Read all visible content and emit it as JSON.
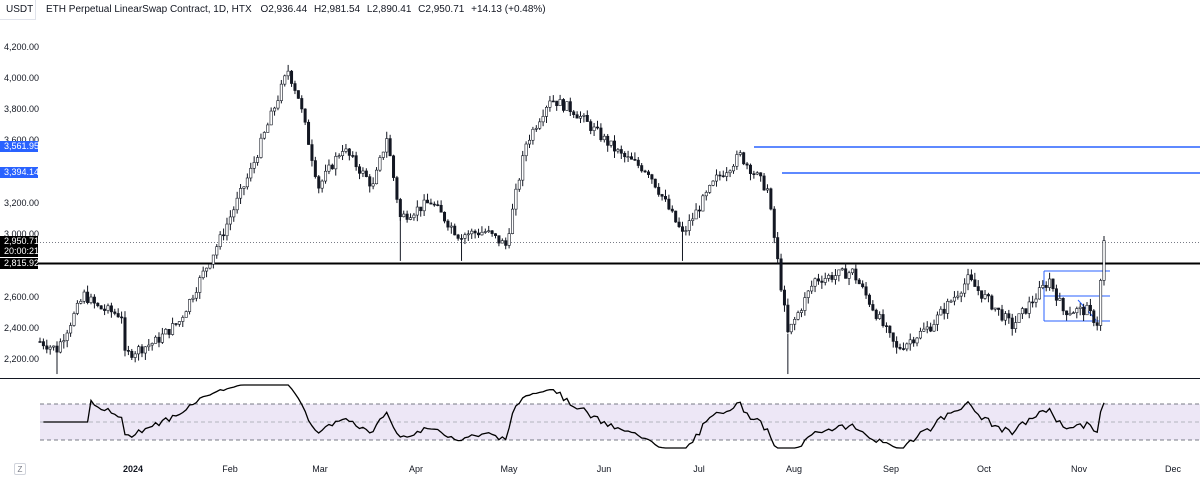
{
  "header": {
    "symbol_box": "USDT",
    "title": "ETH Perpetual LinearSwap Contract, 1D, HTX",
    "open_label": "O",
    "open_value": "2,936.44",
    "high_label": "H",
    "high_value": "2,981.54",
    "low_label": "L",
    "low_value": "2,890.41",
    "close_label": "C",
    "close_value": "2,950.71",
    "change": "+14.13 (+0.48%)"
  },
  "price_axis": {
    "labels": [
      "4,200.00",
      "4,000.00",
      "3,800.00",
      "3,600.00",
      "3,200.00",
      "3,000.00",
      "2,600.00",
      "2,400.00",
      "2,200.00"
    ],
    "tags": {
      "resistance_high": "3,561.95",
      "resistance_low": "3,394.14",
      "last_price": "2,950.71",
      "countdown": "20:00:21",
      "support": "2,815.92"
    }
  },
  "time_axis": {
    "year_label": "2024",
    "months": [
      "Feb",
      "Mar",
      "Apr",
      "May",
      "Jun",
      "Jul",
      "Aug",
      "Sep",
      "Oct",
      "Nov",
      "Dec"
    ]
  },
  "logo": {
    "icon": "tradingview-logo-icon",
    "text": "Z"
  },
  "colors": {
    "candle": "#131722",
    "resistance": "#2962ff",
    "support": "#000000",
    "rsi_band": "#ede7f6",
    "rsi_line": "#000000"
  },
  "chart_data": {
    "type": "candlestick",
    "symbol": "ETH Perpetual LinearSwap Contract",
    "interval": "1D",
    "exchange": "HTX",
    "ylim": [
      2080,
      4280
    ],
    "key_levels": {
      "resistance": [
        3561.95,
        3394.14
      ],
      "support": [
        2815.92
      ],
      "last": 2950.71
    },
    "close_path": [
      [
        "2023-12-29",
        2300
      ],
      [
        "2024-01-03",
        2250
      ],
      [
        "2024-01-11",
        2600
      ],
      [
        "2024-01-15",
        2520
      ],
      [
        "2024-01-22",
        2470
      ],
      [
        "2024-01-23",
        2210
      ],
      [
        "2024-02-01",
        2300
      ],
      [
        "2024-02-08",
        2430
      ],
      [
        "2024-02-20",
        2960
      ],
      [
        "2024-02-29",
        3400
      ],
      [
        "2024-03-11",
        4050
      ],
      [
        "2024-03-14",
        3880
      ],
      [
        "2024-03-20",
        3300
      ],
      [
        "2024-03-27",
        3550
      ],
      [
        "2024-04-05",
        3300
      ],
      [
        "2024-04-09",
        3620
      ],
      [
        "2024-04-13",
        3100
      ],
      [
        "2024-04-22",
        3200
      ],
      [
        "2024-04-30",
        2990
      ],
      [
        "2024-05-08",
        3010
      ],
      [
        "2024-05-14",
        2920
      ],
      [
        "2024-05-20",
        3580
      ],
      [
        "2024-05-27",
        3870
      ],
      [
        "2024-06-03",
        3790
      ],
      [
        "2024-06-17",
        3500
      ],
      [
        "2024-06-25",
        3400
      ],
      [
        "2024-07-05",
        2990
      ],
      [
        "2024-07-15",
        3350
      ],
      [
        "2024-07-22",
        3500
      ],
      [
        "2024-07-30",
        3280
      ],
      [
        "2024-08-05",
        2350
      ],
      [
        "2024-08-13",
        2700
      ],
      [
        "2024-08-24",
        2750
      ],
      [
        "2024-09-06",
        2250
      ],
      [
        "2024-09-16",
        2400
      ],
      [
        "2024-09-27",
        2700
      ],
      [
        "2024-10-10",
        2400
      ],
      [
        "2024-10-21",
        2700
      ],
      [
        "2024-10-25",
        2500
      ],
      [
        "2024-11-01",
        2500
      ],
      [
        "2024-11-04",
        2420
      ],
      [
        "2024-11-06",
        2950
      ]
    ],
    "indicator": {
      "name": "RSI",
      "bands": [
        70,
        50,
        30
      ]
    }
  }
}
